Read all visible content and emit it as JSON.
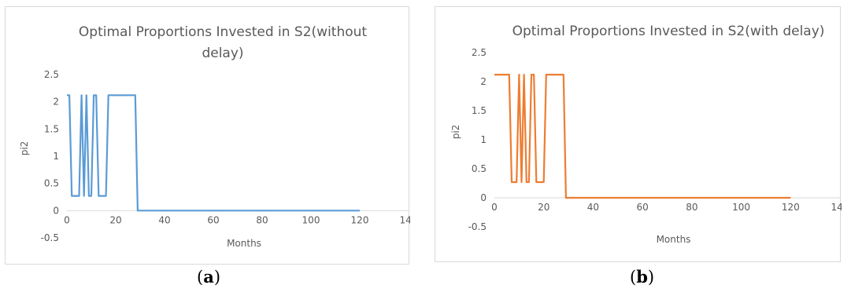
{
  "chart_data": [
    {
      "type": "line",
      "title_lines": [
        "Optimal Proportions Invested in S2(without",
        "delay)"
      ],
      "xlabel": "Months",
      "ylabel": "pi2",
      "xlim": [
        0,
        140
      ],
      "ylim": [
        -0.5,
        2.5
      ],
      "x_ticks": [
        "0",
        "20",
        "40",
        "60",
        "80",
        "100",
        "120",
        "140"
      ],
      "y_ticks": [
        "-0.5",
        "0",
        "0.5",
        "1",
        "1.5",
        "2",
        "2.5"
      ],
      "grid": false,
      "series": [
        {
          "color": "#5b9bd5",
          "points": [
            [
              0,
              2.12
            ],
            [
              1,
              2.12
            ],
            [
              2,
              0.27
            ],
            [
              4,
              0.27
            ],
            [
              5,
              0.27
            ],
            [
              6,
              2.12
            ],
            [
              7,
              0.27
            ],
            [
              8,
              2.12
            ],
            [
              9,
              0.27
            ],
            [
              10,
              0.27
            ],
            [
              11,
              2.12
            ],
            [
              12,
              2.12
            ],
            [
              13,
              0.27
            ],
            [
              15,
              0.27
            ],
            [
              16,
              0.27
            ],
            [
              17,
              2.12
            ],
            [
              20,
              2.12
            ],
            [
              25,
              2.12
            ],
            [
              28,
              2.12
            ],
            [
              29,
              0
            ],
            [
              40,
              0
            ],
            [
              60,
              0
            ],
            [
              80,
              0
            ],
            [
              100,
              0
            ],
            [
              120,
              0
            ]
          ]
        }
      ]
    },
    {
      "type": "line",
      "title_lines": [
        "Optimal Proportions Invested in S2(with delay)"
      ],
      "xlabel": "Months",
      "ylabel": "pi2",
      "xlim": [
        0,
        140
      ],
      "ylim": [
        -0.5,
        2.5
      ],
      "x_ticks": [
        "0",
        "20",
        "40",
        "60",
        "80",
        "100",
        "120",
        "140"
      ],
      "y_ticks": [
        "-0.5",
        "0",
        "0.5",
        "1",
        "1.5",
        "2",
        "2.5"
      ],
      "grid": false,
      "series": [
        {
          "color": "#ed7d31",
          "points": [
            [
              0,
              2.12
            ],
            [
              3,
              2.12
            ],
            [
              6,
              2.12
            ],
            [
              7,
              0.27
            ],
            [
              9,
              0.27
            ],
            [
              10,
              2.12
            ],
            [
              11,
              0.27
            ],
            [
              12,
              2.12
            ],
            [
              13,
              0.27
            ],
            [
              14,
              0.27
            ],
            [
              15,
              2.12
            ],
            [
              16,
              2.12
            ],
            [
              17,
              0.27
            ],
            [
              19,
              0.27
            ],
            [
              20,
              0.27
            ],
            [
              21,
              2.12
            ],
            [
              25,
              2.12
            ],
            [
              28,
              2.12
            ],
            [
              29,
              0
            ],
            [
              40,
              0
            ],
            [
              60,
              0
            ],
            [
              80,
              0
            ],
            [
              100,
              0
            ],
            [
              120,
              0
            ]
          ]
        }
      ]
    }
  ],
  "captions": {
    "a": {
      "open": "(",
      "letter": "a",
      "close": ")"
    },
    "b": {
      "open": "(",
      "letter": "b",
      "close": ")"
    }
  }
}
